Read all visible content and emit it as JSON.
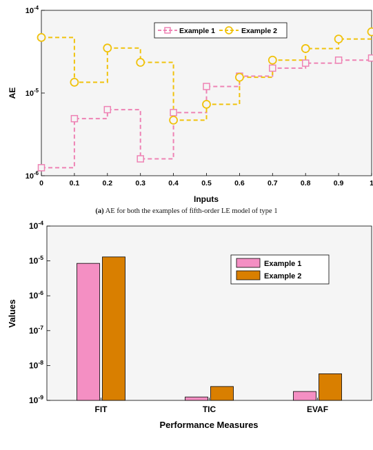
{
  "chart_data": [
    {
      "type": "line",
      "step": true,
      "y_scale": "log",
      "xlabel": "Inputs",
      "ylabel": "AE",
      "xlim": [
        0,
        1
      ],
      "ylim": [
        1e-06,
        0.0001
      ],
      "x_ticks": [
        "0",
        "0.1",
        "0.2",
        "0.3",
        "0.4",
        "0.5",
        "0.6",
        "0.7",
        "0.8",
        "0.9",
        "1"
      ],
      "y_ticks": [
        {
          "base": "10",
          "exp": "-6"
        },
        {
          "base": "10",
          "exp": "-5"
        },
        {
          "base": "10",
          "exp": "-4"
        }
      ],
      "x": [
        0,
        0.1,
        0.2,
        0.3,
        0.4,
        0.5,
        0.6,
        0.7,
        0.8,
        0.9,
        1.0
      ],
      "series": [
        {
          "name": "Example 1",
          "color": "#ee82b4",
          "marker": "square",
          "values": [
            1.25e-06,
            4.9e-06,
            6.3e-06,
            1.6e-06,
            5.8e-06,
            1.2e-05,
            1.6e-05,
            2e-05,
            2.3e-05,
            2.5e-05,
            2.65e-05
          ]
        },
        {
          "name": "Example 2",
          "color": "#f0c20c",
          "marker": "circle",
          "values": [
            4.7e-05,
            1.35e-05,
            3.5e-05,
            2.35e-05,
            4.7e-06,
            7.3e-06,
            1.55e-05,
            2.5e-05,
            3.45e-05,
            4.5e-05,
            5.5e-05
          ]
        }
      ],
      "grid": false,
      "legend": "top-center",
      "caption_prefix": "(a)",
      "caption_text": "AE for both the examples of fifth-order LE model of type 1"
    },
    {
      "type": "bar",
      "y_scale": "log",
      "xlabel": "Performance Measures",
      "ylabel": "Values",
      "categories": [
        "FIT",
        "TIC",
        "EVAF"
      ],
      "ylim": [
        1e-09,
        0.0001
      ],
      "y_ticks": [
        {
          "base": "10",
          "exp": "-9"
        },
        {
          "base": "10",
          "exp": "-8"
        },
        {
          "base": "10",
          "exp": "-7"
        },
        {
          "base": "10",
          "exp": "-6"
        },
        {
          "base": "10",
          "exp": "-5"
        },
        {
          "base": "10",
          "exp": "-4"
        }
      ],
      "series": [
        {
          "name": "Example 1",
          "color": "#f48fc3",
          "values": [
            8.5e-06,
            1.25e-09,
            1.8e-09
          ]
        },
        {
          "name": "Example 2",
          "color": "#d97f00",
          "values": [
            1.3e-05,
            2.5e-09,
            5.8e-09
          ]
        }
      ],
      "grid": false,
      "legend": "top-right"
    }
  ]
}
